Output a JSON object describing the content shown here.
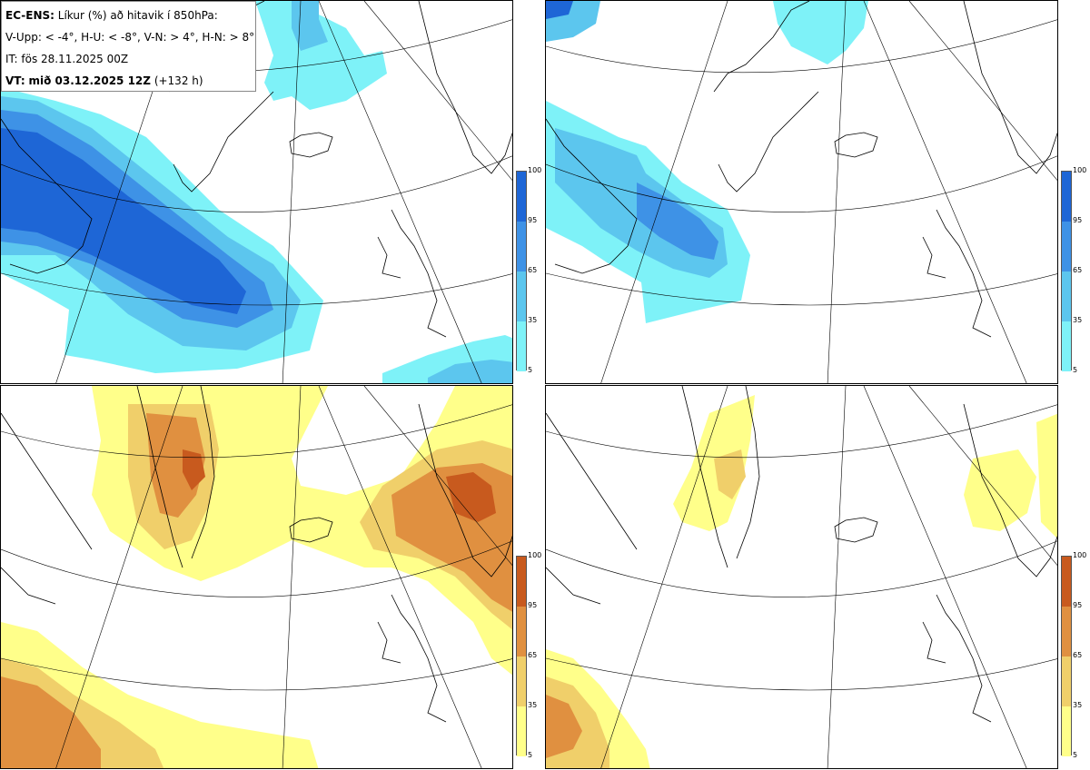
{
  "legend": {
    "model": "EC-ENS:",
    "title": "Líkur (%) að hitavik í 850hPa:",
    "thresholds": "V-Upp: < -4°, H-U: < -8°, V-N: > 4°, H-N: > 8°",
    "issue_time": "IT: fös 28.11.2025 00Z",
    "valid_label": "VT:",
    "valid_time": "mið 03.12.2025 12Z",
    "lead": "(+132 h)"
  },
  "panels": [
    {
      "id": "V-Upp",
      "label": "< -4°",
      "scheme": "blue"
    },
    {
      "id": "H-U",
      "label": "< -8°",
      "scheme": "blue"
    },
    {
      "id": "V-N",
      "label": "> 4°",
      "scheme": "warm"
    },
    {
      "id": "H-N",
      "label": "> 8°",
      "scheme": "warm"
    }
  ],
  "colorbar": {
    "ticks": [
      "100",
      "95",
      "65",
      "35",
      "5"
    ],
    "blue_colors": [
      "#1e66d6",
      "#3e92e6",
      "#5cc6ee",
      "#7ef2f8"
    ],
    "warm_colors": [
      "#c85a1e",
      "#e09040",
      "#f0cf6a",
      "#ffff8a"
    ]
  },
  "colors": {
    "coast": "#000000",
    "grid": "#000000"
  }
}
